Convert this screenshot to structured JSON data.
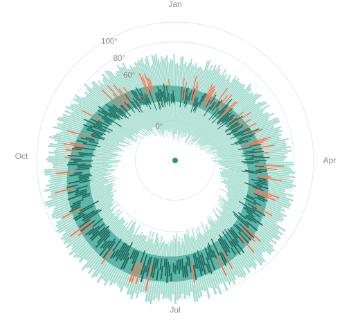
{
  "chart_data": {
    "type": "radial-bar",
    "title": "",
    "month_labels": [
      "Jan",
      "Apr",
      "Jul",
      "Oct"
    ],
    "temperature_ticks": [
      {
        "label": "0°",
        "value": 0
      },
      {
        "label": "32°",
        "value": 32
      },
      {
        "label": "60°",
        "value": 60
      },
      {
        "label": "80°",
        "value": 80
      },
      {
        "label": "100°",
        "value": 100
      }
    ],
    "grid_circles": [
      0,
      32,
      80,
      100
    ],
    "r_domain": [
      -25,
      100
    ],
    "normal_band": {
      "low_jan": 18,
      "low_jul": 58,
      "high_jan": 34,
      "high_jul": 84,
      "peak_day": 201
    },
    "record_band": {
      "low_jan": -10,
      "low_jul": 48,
      "high_jan": 55,
      "high_jul": 96
    },
    "colors": {
      "record_band": "#a4dccf",
      "normal_band": "#5ab5a6",
      "actual_bar": "#1e6e63",
      "above_normal": "#f07a55",
      "grid": "#d9ebe6",
      "center_dot": "#2a9487",
      "label": "#8a8a8a"
    }
  }
}
